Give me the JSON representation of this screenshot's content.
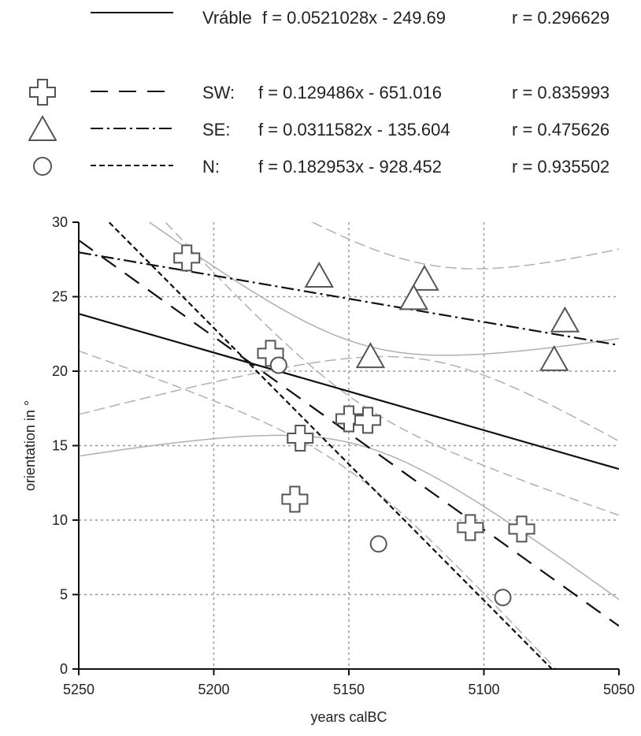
{
  "legend": {
    "rows": [
      {
        "id": "vrable",
        "name": "Vráble",
        "formula": "f = 0.0521028x - 249.69",
        "r": "r = 0.296629"
      },
      {
        "id": "sw",
        "name": "SW:",
        "formula": "f = 0.129486x - 651.016",
        "r": "r = 0.835993"
      },
      {
        "id": "se",
        "name": "SE:",
        "formula": "f = 0.0311582x - 135.604",
        "r": "r = 0.475626"
      },
      {
        "id": "n",
        "name": "N:",
        "formula": "f = 0.182953x - 928.452",
        "r": "r = 0.935502"
      }
    ]
  },
  "chart_data": {
    "type": "scatter",
    "title": "",
    "xlabel": "years calBC",
    "ylabel": "orientation in °",
    "xlim": [
      5250,
      5050
    ],
    "ylim": [
      0,
      30
    ],
    "x_reversed": true,
    "xticks": [
      5250,
      5200,
      5150,
      5100,
      5050
    ],
    "yticks": [
      0,
      5,
      10,
      15,
      20,
      25,
      30
    ],
    "grid": true,
    "legend_placement": "top",
    "colors": {
      "marker": "#555555",
      "line": "#111111",
      "band": "#b0b0b0",
      "grid": "#999999"
    },
    "series": [
      {
        "id": "sw",
        "name": "SW:",
        "marker": "cross-icon",
        "points": [
          [
            5210,
            27.6
          ],
          [
            5179,
            21.2
          ],
          [
            5168,
            15.5
          ],
          [
            5170,
            11.4
          ],
          [
            5150,
            16.8
          ],
          [
            5143,
            16.7
          ],
          [
            5105,
            9.5
          ],
          [
            5086,
            9.4
          ]
        ],
        "fit": {
          "slope": 0.129486,
          "intercept": -651.016,
          "r": 0.835993,
          "style": "long-dash"
        }
      },
      {
        "id": "se",
        "name": "SE:",
        "marker": "triangle-icon",
        "points": [
          [
            5161,
            26.4
          ],
          [
            5122,
            26.2
          ],
          [
            5126,
            24.9
          ],
          [
            5070,
            23.4
          ],
          [
            5142,
            21.0
          ],
          [
            5074,
            20.8
          ]
        ],
        "fit": {
          "slope": 0.0311582,
          "intercept": -135.604,
          "r": 0.475626,
          "style": "dash-dot"
        }
      },
      {
        "id": "n",
        "name": "N:",
        "marker": "circle-icon",
        "points": [
          [
            5176,
            20.4
          ],
          [
            5139,
            8.4
          ],
          [
            5093,
            4.8
          ]
        ],
        "fit": {
          "slope": 0.182953,
          "intercept": -928.452,
          "r": 0.935502,
          "style": "short-dash"
        }
      }
    ],
    "overall_fit": {
      "name": "Vráble",
      "slope": 0.0521028,
      "intercept": -249.69,
      "r": 0.296629,
      "style": "solid"
    }
  }
}
